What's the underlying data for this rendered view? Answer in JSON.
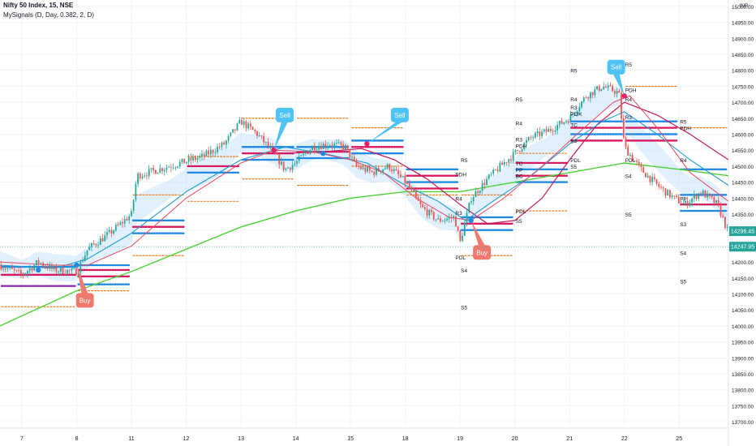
{
  "header": {
    "symbol_line": "Nifty 50 Index, 15, NSE",
    "indicator_line": "MySignals (D, Day, 0.382, 2, D)"
  },
  "chart_data": {
    "type": "candlestick",
    "currency": "INR",
    "y_ticks": [
      13700,
      13750,
      13800,
      13850,
      13900,
      13950,
      14000,
      14050,
      14100,
      14150,
      14200,
      14250,
      14300,
      14350,
      14400,
      14450,
      14500,
      14550,
      14600,
      14650,
      14700,
      14750,
      14800,
      14850,
      14900,
      14950,
      15000
    ],
    "ylim": [
      13680,
      15020
    ],
    "x_ticks": [
      {
        "label": "7",
        "day": 0
      },
      {
        "label": "8",
        "day": 1
      },
      {
        "label": "11",
        "day": 2
      },
      {
        "label": "12",
        "day": 3
      },
      {
        "label": "13",
        "day": 4
      },
      {
        "label": "14",
        "day": 5
      },
      {
        "label": "15",
        "day": 6
      },
      {
        "label": "18",
        "day": 7
      },
      {
        "label": "19",
        "day": 8
      },
      {
        "label": "20",
        "day": 9
      },
      {
        "label": "21",
        "day": 10
      },
      {
        "label": "22",
        "day": 11
      },
      {
        "label": "25",
        "day": 12
      }
    ],
    "xlim_days": [
      -0.4,
      12.9
    ],
    "price_path": [
      [
        -0.4,
        14190
      ],
      [
        0.0,
        14160
      ],
      [
        0.3,
        14200
      ],
      [
        0.6,
        14175
      ],
      [
        1.0,
        14170
      ],
      [
        1.2,
        14240
      ],
      [
        1.6,
        14290
      ],
      [
        2.0,
        14350
      ],
      [
        2.1,
        14470
      ],
      [
        2.5,
        14490
      ],
      [
        2.9,
        14510
      ],
      [
        3.3,
        14530
      ],
      [
        3.7,
        14570
      ],
      [
        4.0,
        14640
      ],
      [
        4.3,
        14600
      ],
      [
        4.6,
        14540
      ],
      [
        4.8,
        14490
      ],
      [
        5.0,
        14510
      ],
      [
        5.3,
        14560
      ],
      [
        5.6,
        14570
      ],
      [
        5.9,
        14560
      ],
      [
        6.1,
        14500
      ],
      [
        6.4,
        14480
      ],
      [
        6.7,
        14500
      ],
      [
        7.0,
        14450
      ],
      [
        7.3,
        14370
      ],
      [
        7.6,
        14330
      ],
      [
        7.9,
        14340
      ],
      [
        8.0,
        14260
      ],
      [
        8.2,
        14400
      ],
      [
        8.5,
        14460
      ],
      [
        8.8,
        14510
      ],
      [
        9.0,
        14540
      ],
      [
        9.3,
        14590
      ],
      [
        9.6,
        14610
      ],
      [
        10.0,
        14650
      ],
      [
        10.3,
        14720
      ],
      [
        10.6,
        14750
      ],
      [
        10.9,
        14730
      ],
      [
        11.0,
        14560
      ],
      [
        11.3,
        14490
      ],
      [
        11.6,
        14440
      ],
      [
        11.9,
        14400
      ],
      [
        12.1,
        14380
      ],
      [
        12.4,
        14420
      ],
      [
        12.7,
        14380
      ],
      [
        12.9,
        14290
      ]
    ],
    "ema_slow": [
      [
        -0.4,
        14000
      ],
      [
        1.0,
        14110
      ],
      [
        2.0,
        14170
      ],
      [
        3.0,
        14240
      ],
      [
        4.0,
        14310
      ],
      [
        5.0,
        14360
      ],
      [
        6.0,
        14400
      ],
      [
        7.0,
        14420
      ],
      [
        8.0,
        14420
      ],
      [
        9.0,
        14450
      ],
      [
        10.0,
        14480
      ],
      [
        11.0,
        14510
      ],
      [
        12.0,
        14490
      ],
      [
        12.9,
        14470
      ]
    ],
    "ema_fast": [
      [
        -0.4,
        14190
      ],
      [
        0.6,
        14180
      ],
      [
        1.2,
        14210
      ],
      [
        2.0,
        14290
      ],
      [
        3.0,
        14420
      ],
      [
        4.0,
        14520
      ],
      [
        4.8,
        14560
      ],
      [
        5.5,
        14540
      ],
      [
        6.3,
        14510
      ],
      [
        7.0,
        14440
      ],
      [
        7.6,
        14390
      ],
      [
        8.1,
        14330
      ],
      [
        8.6,
        14390
      ],
      [
        9.3,
        14470
      ],
      [
        10.0,
        14570
      ],
      [
        10.6,
        14640
      ],
      [
        11.0,
        14670
      ],
      [
        11.6,
        14600
      ],
      [
        12.2,
        14520
      ],
      [
        12.9,
        14440
      ]
    ],
    "ma_red": [
      [
        -0.4,
        14200
      ],
      [
        0.6,
        14190
      ],
      [
        1.2,
        14190
      ],
      [
        2.0,
        14250
      ],
      [
        3.0,
        14400
      ],
      [
        4.0,
        14510
      ],
      [
        4.6,
        14550
      ],
      [
        5.3,
        14545
      ],
      [
        6.0,
        14520
      ],
      [
        6.6,
        14480
      ],
      [
        7.2,
        14400
      ],
      [
        7.8,
        14340
      ],
      [
        8.2,
        14330
      ],
      [
        8.8,
        14400
      ],
      [
        9.5,
        14500
      ],
      [
        10.2,
        14610
      ],
      [
        10.8,
        14700
      ],
      [
        11.1,
        14720
      ],
      [
        11.6,
        14620
      ],
      [
        12.2,
        14480
      ],
      [
        12.9,
        14390
      ]
    ],
    "ma_crimson": [
      [
        4.8,
        14540
      ],
      [
        5.5,
        14545
      ],
      [
        6.2,
        14555
      ],
      [
        6.8,
        14520
      ],
      [
        7.4,
        14460
      ],
      [
        8.0,
        14380
      ],
      [
        8.5,
        14320
      ],
      [
        9.0,
        14330
      ],
      [
        9.5,
        14400
      ],
      [
        10.0,
        14520
      ],
      [
        10.5,
        14630
      ],
      [
        11.0,
        14700
      ],
      [
        11.6,
        14660
      ],
      [
        12.2,
        14600
      ],
      [
        12.9,
        14520
      ]
    ],
    "pivot_blocks": [
      {
        "d0": -0.4,
        "d1": 1.0,
        "levels": [
          {
            "v": 14185,
            "c": "#1e88e5",
            "s": "dot"
          },
          {
            "v": 14160,
            "c": "#d81b60",
            "s": "dot"
          },
          {
            "v": 14125,
            "c": "#8e24aa",
            "s": "dot"
          },
          {
            "v": 14060,
            "c": "#ef6c00",
            "s": "dash"
          }
        ]
      },
      {
        "d0": 1.0,
        "d1": 2.0,
        "levels": [
          {
            "v": 14190,
            "c": "#1e88e5",
            "s": "dot"
          },
          {
            "v": 14175,
            "c": "#d81b60",
            "s": "dot"
          },
          {
            "v": 14155,
            "c": "#d81b60",
            "s": "dot"
          },
          {
            "v": 14130,
            "c": "#1e88e5",
            "s": "dot"
          },
          {
            "v": 14110,
            "c": "#ef6c00",
            "s": "dash"
          }
        ]
      },
      {
        "d0": 2.0,
        "d1": 3.0,
        "levels": [
          {
            "v": 14410,
            "c": "#ef6c00",
            "s": "dash"
          },
          {
            "v": 14330,
            "c": "#1e88e5",
            "s": "dot"
          },
          {
            "v": 14310,
            "c": "#d81b60",
            "s": "dot"
          },
          {
            "v": 14290,
            "c": "#1e88e5",
            "s": "dot"
          },
          {
            "v": 14220,
            "c": "#ef6c00",
            "s": "dash"
          }
        ]
      },
      {
        "d0": 3.0,
        "d1": 4.0,
        "levels": [
          {
            "v": 14530,
            "c": "#ef6c00",
            "s": "dash"
          },
          {
            "v": 14500,
            "c": "#d81b60",
            "s": "dot"
          },
          {
            "v": 14480,
            "c": "#1e88e5",
            "s": "dot"
          },
          {
            "v": 14390,
            "c": "#ef6c00",
            "s": "dash"
          }
        ]
      },
      {
        "d0": 4.0,
        "d1": 5.0,
        "levels": [
          {
            "v": 14650,
            "c": "#ef6c00",
            "s": "dash"
          },
          {
            "v": 14560,
            "c": "#1e88e5",
            "s": "dot"
          },
          {
            "v": 14540,
            "c": "#d81b60",
            "s": "dot"
          },
          {
            "v": 14520,
            "c": "#1e88e5",
            "s": "dot"
          },
          {
            "v": 14460,
            "c": "#ef6c00",
            "s": "dash"
          }
        ]
      },
      {
        "d0": 5.0,
        "d1": 6.0,
        "levels": [
          {
            "v": 14650,
            "c": "#ef6c00",
            "s": "dash"
          },
          {
            "v": 14560,
            "c": "#1e88e5",
            "s": "dot"
          },
          {
            "v": 14545,
            "c": "#d81b60",
            "s": "dot"
          },
          {
            "v": 14525,
            "c": "#1e88e5",
            "s": "dot"
          },
          {
            "v": 14440,
            "c": "#ef6c00",
            "s": "dash"
          }
        ]
      },
      {
        "d0": 6.0,
        "d1": 7.0,
        "levels": [
          {
            "v": 14620,
            "c": "#ef6c00",
            "s": "dash"
          },
          {
            "v": 14580,
            "c": "#1e88e5",
            "s": "dot"
          },
          {
            "v": 14560,
            "c": "#d81b60",
            "s": "dot"
          },
          {
            "v": 14540,
            "c": "#1e88e5",
            "s": "dot"
          },
          {
            "v": 14500,
            "c": "#ef6c00",
            "s": "dash"
          }
        ]
      },
      {
        "d0": 7.0,
        "d1": 8.0,
        "levels": [
          {
            "v": 14490,
            "c": "#1e88e5",
            "s": "dot"
          },
          {
            "v": 14470,
            "c": "#d81b60",
            "s": "dot"
          },
          {
            "v": 14450,
            "c": "#1e88e5",
            "s": "dot"
          },
          {
            "v": 14430,
            "c": "#d81b60",
            "s": "dot"
          },
          {
            "v": 14410,
            "c": "#ef6c00",
            "s": "dash"
          }
        ]
      },
      {
        "d0": 8.0,
        "d1": 9.0,
        "levels": [
          {
            "v": 14410,
            "c": "#ef6c00",
            "s": "dash"
          },
          {
            "v": 14340,
            "c": "#1e88e5",
            "s": "dot"
          },
          {
            "v": 14320,
            "c": "#d81b60",
            "s": "dot"
          },
          {
            "v": 14300,
            "c": "#1e88e5",
            "s": "dot"
          },
          {
            "v": 14220,
            "c": "#ef6c00",
            "s": "dash"
          }
        ]
      },
      {
        "d0": 9.0,
        "d1": 10.0,
        "levels": [
          {
            "v": 14540,
            "c": "#ef6c00",
            "s": "dash"
          },
          {
            "v": 14510,
            "c": "#d81b60",
            "s": "dot"
          },
          {
            "v": 14490,
            "c": "#1e88e5",
            "s": "dot"
          },
          {
            "v": 14470,
            "c": "#d81b60",
            "s": "dot"
          },
          {
            "v": 14450,
            "c": "#1e88e5",
            "s": "dot"
          },
          {
            "v": 14360,
            "c": "#ef6c00",
            "s": "dash"
          }
        ]
      },
      {
        "d0": 10.0,
        "d1": 11.0,
        "levels": [
          {
            "v": 14640,
            "c": "#1e88e5",
            "s": "dot"
          },
          {
            "v": 14620,
            "c": "#d81b60",
            "s": "dot"
          },
          {
            "v": 14600,
            "c": "#1e88e5",
            "s": "dot"
          },
          {
            "v": 14580,
            "c": "#d81b60",
            "s": "dot"
          }
        ]
      },
      {
        "d0": 11.0,
        "d1": 12.0,
        "levels": [
          {
            "v": 14750,
            "c": "#ef6c00",
            "s": "dash"
          },
          {
            "v": 14640,
            "c": "#1e88e5",
            "s": "dot"
          },
          {
            "v": 14620,
            "c": "#d81b60",
            "s": "dot"
          },
          {
            "v": 14600,
            "c": "#1e88e5",
            "s": "dot"
          },
          {
            "v": 14580,
            "c": "#d81b60",
            "s": "dot"
          }
        ]
      },
      {
        "d0": 12.0,
        "d1": 12.9,
        "levels": [
          {
            "v": 14620,
            "c": "#ef6c00",
            "s": "dash"
          },
          {
            "v": 14490,
            "c": "#1e88e5",
            "s": "dot"
          },
          {
            "v": 14410,
            "c": "#1e88e5",
            "s": "dot"
          },
          {
            "v": 14380,
            "c": "#d81b60",
            "s": "dot"
          },
          {
            "v": 14360,
            "c": "#1e88e5",
            "s": "dot"
          }
        ]
      }
    ],
    "level_labels": [
      {
        "t": "R5",
        "d": 8.0,
        "v": 14520
      },
      {
        "t": "R4",
        "d": 7.9,
        "v": 14400
      },
      {
        "t": "PDH",
        "d": 7.9,
        "v": 14475
      },
      {
        "t": "R3",
        "d": 7.9,
        "v": 14355
      },
      {
        "t": "PDL",
        "d": 7.9,
        "v": 14215
      },
      {
        "t": "S4",
        "d": 8.0,
        "v": 14175
      },
      {
        "t": "S5",
        "d": 8.0,
        "v": 14060
      },
      {
        "t": "R5",
        "d": 9.0,
        "v": 14710
      },
      {
        "t": "R4",
        "d": 9.0,
        "v": 14635
      },
      {
        "t": "R3",
        "d": 9.0,
        "v": 14585
      },
      {
        "t": "PDH",
        "d": 9.0,
        "v": 14565
      },
      {
        "t": "TC",
        "d": 9.0,
        "v": 14510
      },
      {
        "t": "PP",
        "d": 9.0,
        "v": 14490
      },
      {
        "t": "BC",
        "d": 9.0,
        "v": 14470
      },
      {
        "t": "PDL",
        "d": 9.0,
        "v": 14360
      },
      {
        "t": "S5",
        "d": 9.0,
        "v": 14330
      },
      {
        "t": "R5",
        "d": 10.0,
        "v": 14800
      },
      {
        "t": "R4",
        "d": 10.0,
        "v": 14710
      },
      {
        "t": "R3",
        "d": 10.0,
        "v": 14685
      },
      {
        "t": "PDH",
        "d": 10.0,
        "v": 14665
      },
      {
        "t": "TC",
        "d": 10.0,
        "v": 14630
      },
      {
        "t": "PDL",
        "d": 10.0,
        "v": 14520
      },
      {
        "t": "S5",
        "d": 10.0,
        "v": 14500
      },
      {
        "t": "S4",
        "d": 10.0,
        "v": 14580
      },
      {
        "t": "R5",
        "d": 11.0,
        "v": 14820
      },
      {
        "t": "PDH",
        "d": 11.0,
        "v": 14740
      },
      {
        "t": "R4",
        "d": 11.0,
        "v": 14710
      },
      {
        "t": "R3",
        "d": 11.0,
        "v": 14655
      },
      {
        "t": "PDL",
        "d": 11.0,
        "v": 14520
      },
      {
        "t": "S4",
        "d": 11.0,
        "v": 14470
      },
      {
        "t": "S5",
        "d": 11.0,
        "v": 14350
      },
      {
        "t": "R5",
        "d": 12.0,
        "v": 14640
      },
      {
        "t": "PDH",
        "d": 12.0,
        "v": 14620
      },
      {
        "t": "R4",
        "d": 12.0,
        "v": 14520
      },
      {
        "t": "PP",
        "d": 12.0,
        "v": 14400
      },
      {
        "t": "S3",
        "d": 12.0,
        "v": 14320
      },
      {
        "t": "S4",
        "d": 12.0,
        "v": 14230
      },
      {
        "t": "S5",
        "d": 12.0,
        "v": 14140
      }
    ],
    "signals": [
      {
        "label": "Sell",
        "type": "sell",
        "d": 4.6,
        "v": 14550,
        "bd": 4.8,
        "bv": 14660
      },
      {
        "label": "Sell",
        "type": "sell",
        "d": 6.3,
        "v": 14570,
        "bd": 6.9,
        "bv": 14660
      },
      {
        "label": "Sell",
        "type": "sell",
        "d": 11.0,
        "v": 14720,
        "bd": 10.85,
        "bv": 14810
      },
      {
        "label": "Buy",
        "type": "buy",
        "d": 1.0,
        "v": 14190,
        "bd": 1.15,
        "bv": 14080
      },
      {
        "label": "Buy",
        "type": "buy",
        "d": 8.2,
        "v": 14330,
        "bd": 8.4,
        "bv": 14230
      }
    ],
    "signal_dots": [
      {
        "d": 0.3,
        "v": 14175,
        "c": "#1e88e5"
      },
      {
        "d": 1.0,
        "v": 14190,
        "c": "#1e88e5"
      },
      {
        "d": 4.6,
        "v": 14550,
        "c": "#e91e63"
      },
      {
        "d": 5.5,
        "v": 14540,
        "c": "#1e88e5"
      },
      {
        "d": 6.3,
        "v": 14570,
        "c": "#e91e63"
      },
      {
        "d": 8.2,
        "v": 14330,
        "c": "#1e88e5"
      },
      {
        "d": 11.0,
        "v": 14720,
        "c": "#e91e63"
      }
    ],
    "price_tags": [
      {
        "value": "14296.45",
        "v": 14296.45,
        "color": "#26a69a"
      },
      {
        "value": "14247.95",
        "v": 14247.95,
        "color": "#26a69a"
      }
    ]
  }
}
